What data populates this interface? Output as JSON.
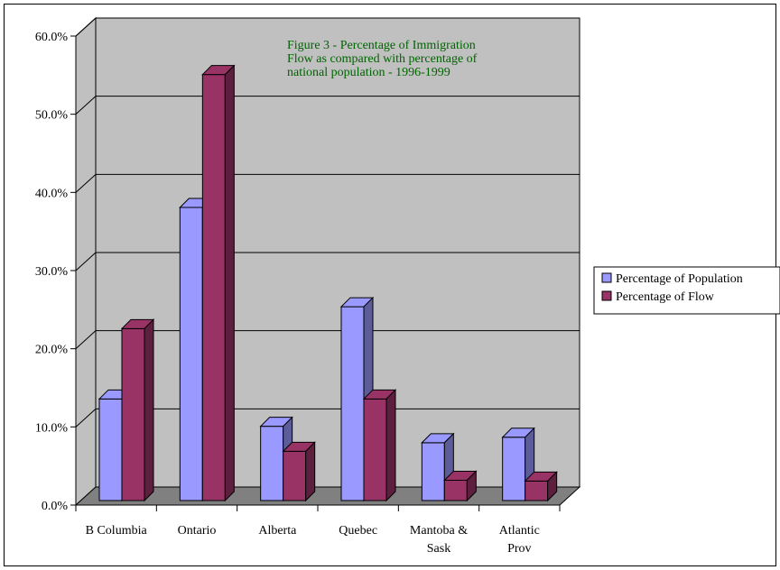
{
  "chart_data": {
    "type": "bar",
    "title": "Figure 3 - Percentage of Immigration Flow as compared with percentage of national population - 1996-1999",
    "title_lines": [
      "Figure 3 - Percentage of Immigration",
      "Flow as compared with percentage of",
      "national population - 1996-1999"
    ],
    "categories": [
      "B Columbia",
      "Ontario",
      "Alberta",
      "Quebec",
      "Mantoba & Sask",
      "Atlantic Prov"
    ],
    "category_lines": [
      [
        "B Columbia"
      ],
      [
        "Ontario"
      ],
      [
        "Alberta"
      ],
      [
        "Quebec"
      ],
      [
        "Mantoba &",
        "Sask"
      ],
      [
        "Atlantic",
        "Prov"
      ]
    ],
    "series": [
      {
        "name": "Percentage of Population",
        "values": [
          13.0,
          37.5,
          9.5,
          24.8,
          7.4,
          8.1
        ],
        "color": "#9999ff"
      },
      {
        "name": "Percentage of Flow",
        "values": [
          22.0,
          54.5,
          6.3,
          13.0,
          2.6,
          2.5
        ],
        "color": "#993366"
      }
    ],
    "ylim": [
      0,
      60
    ],
    "yticks": [
      "0.0%",
      "10.0%",
      "20.0%",
      "30.0%",
      "40.0%",
      "50.0%",
      "60.0%"
    ],
    "xlabel": "",
    "ylabel": "",
    "grid": true,
    "legend_position": "right",
    "wall_color": "#c0c0c0",
    "floor_color": "#808080",
    "title_color": "#006400"
  }
}
